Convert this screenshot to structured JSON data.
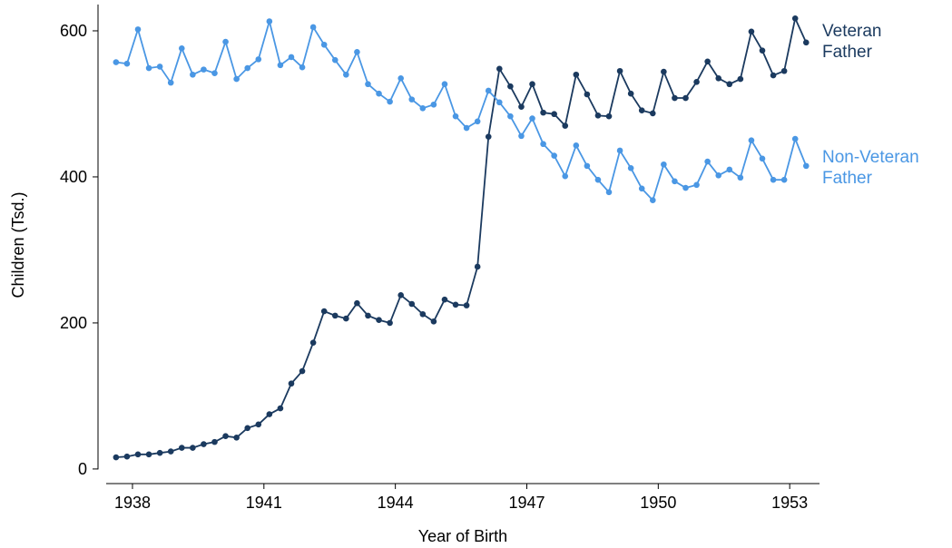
{
  "chart_data": {
    "type": "line",
    "x_label": "Year of Birth",
    "y_label": "Children (Tsd.)",
    "x": [
      1937.625,
      1937.875,
      1938.125,
      1938.375,
      1938.625,
      1938.875,
      1939.125,
      1939.375,
      1939.625,
      1939.875,
      1940.125,
      1940.375,
      1940.625,
      1940.875,
      1941.125,
      1941.375,
      1941.625,
      1941.875,
      1942.125,
      1942.375,
      1942.625,
      1942.875,
      1943.125,
      1943.375,
      1943.625,
      1943.875,
      1944.125,
      1944.375,
      1944.625,
      1944.875,
      1945.125,
      1945.375,
      1945.625,
      1945.875,
      1946.125,
      1946.375,
      1946.625,
      1946.875,
      1947.125,
      1947.375,
      1947.625,
      1947.875,
      1948.125,
      1948.375,
      1948.625,
      1948.875,
      1949.125,
      1949.375,
      1949.625,
      1949.875,
      1950.125,
      1950.375,
      1950.625,
      1950.875,
      1951.125,
      1951.375,
      1951.625,
      1951.875,
      1952.125,
      1952.375,
      1952.625,
      1952.875,
      1953.125,
      1953.375
    ],
    "series": [
      {
        "name": "Veteran Father",
        "color": "#1b3a5f",
        "values": [
          16,
          17,
          20,
          20,
          22,
          24,
          29,
          29,
          34,
          37,
          45,
          43,
          56,
          61,
          75,
          83,
          117,
          134,
          173,
          216,
          210,
          206,
          227,
          210,
          204,
          200,
          238,
          226,
          212,
          202,
          232,
          225,
          224,
          277,
          455,
          548,
          524,
          496,
          527,
          488,
          486,
          470,
          540,
          513,
          484,
          483,
          545,
          514,
          491,
          487,
          544,
          508,
          508,
          530,
          558,
          535,
          527,
          534,
          599,
          573,
          539,
          545,
          617,
          584
        ]
      },
      {
        "name": "Non-Veteran Father",
        "color": "#4a97e4",
        "values": [
          557,
          555,
          602,
          549,
          551,
          529,
          576,
          540,
          547,
          542,
          585,
          534,
          549,
          561,
          613,
          553,
          564,
          550,
          605,
          581,
          560,
          540,
          571,
          527,
          514,
          503,
          535,
          506,
          494,
          499,
          527,
          483,
          467,
          476,
          518,
          502,
          483,
          456,
          480,
          445,
          429,
          401,
          443,
          415,
          396,
          379,
          436,
          412,
          384,
          368,
          417,
          394,
          385,
          389,
          421,
          402,
          410,
          399,
          450,
          425,
          396,
          396,
          452,
          415
        ]
      }
    ],
    "xlim": [
      1937.4,
      1953.68
    ],
    "xticks": [
      1938,
      1941,
      1944,
      1947,
      1950,
      1953
    ],
    "ylim": [
      -20,
      636
    ],
    "yticks": [
      0,
      200,
      400,
      600
    ]
  }
}
